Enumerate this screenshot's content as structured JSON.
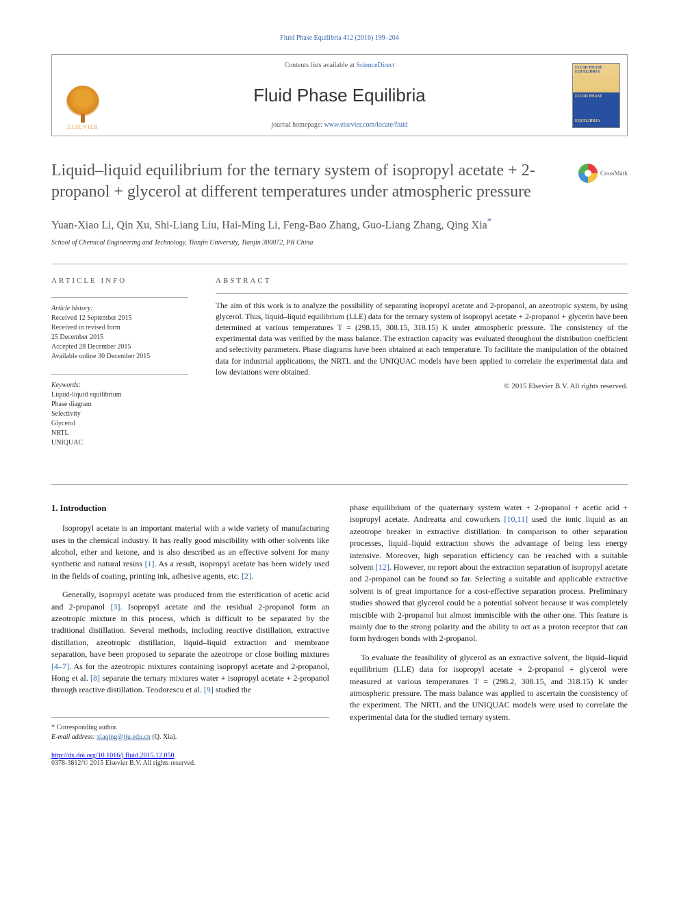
{
  "header": {
    "citation": "Fluid Phase Equilibria 412 (2016) 199–204",
    "contents_text": "Contents lists available at ",
    "contents_link": "ScienceDirect",
    "journal_name": "Fluid Phase Equilibria",
    "homepage_text": "journal homepage: ",
    "homepage_link": "www.elsevier.com/locate/fluid",
    "publisher_name": "ELSEVIER",
    "cover_line1": "FLUID PHASE",
    "cover_line2": "EQUILIBRIA",
    "cover_line3": "FLUID PHASE",
    "cover_line4": "EQUILIBRIA"
  },
  "article": {
    "title": "Liquid–liquid equilibrium for the ternary system of isopropyl acetate + 2-propanol + glycerol at different temperatures under atmospheric pressure",
    "crossmark_label": "CrossMark",
    "authors": "Yuan-Xiao Li, Qin Xu, Shi-Liang Liu, Hai-Ming Li, Feng-Bao Zhang, Guo-Liang Zhang, Qing Xia",
    "corresponding_mark": "*",
    "affiliation": "School of Chemical Engineering and Technology, Tianjin University, Tianjin 300072, PR China"
  },
  "meta": {
    "info_heading": "ARTICLE INFO",
    "history_heading": "Article history:",
    "history_lines": [
      "Received 12 September 2015",
      "Received in revised form",
      "25 December 2015",
      "Accepted 28 December 2015",
      "Available online 30 December 2015"
    ],
    "keywords_heading": "Keywords:",
    "keywords": [
      "Liquid-liquid equilibrium",
      "Phase diagram",
      "Selectivity",
      "Glycerol",
      "NRTL",
      "UNIQUAC"
    ],
    "abstract_heading": "ABSTRACT",
    "abstract": "The aim of this work is to analyze the possibility of separating isopropyl acetate and 2-propanol, an azeotropic system, by using glycerol. Thus, liquid–liquid equilibrium (LLE) data for the ternary system of isopropyl acetate + 2-propanol + glycerin have been determined at various temperatures T = (298.15, 308.15, 318.15) K under atmospheric pressure. The consistency of the experimental data was verified by the mass balance. The extraction capacity was evaluated throughout the distribution coefficient and selectivity parameters. Phase diagrams have been obtained at each temperature. To facilitate the manipulation of the obtained data for industrial applications, the NRTL and the UNIQUAC models have been applied to correlate the experimental data and low deviations were obtained.",
    "copyright": "© 2015 Elsevier B.V. All rights reserved."
  },
  "body": {
    "section_number": "1.",
    "section_title": "Introduction",
    "col1": {
      "p1": "Isopropyl acetate is an important material with a wide variety of manufacturing uses in the chemical industry. It has really good miscibility with other solvents like alcohol, ether and ketone, and is also described as an effective solvent for many synthetic and natural resins [1]. As a result, isopropyl acetate has been widely used in the fields of coating, printing ink, adhesive agents, etc. [2].",
      "p2": "Generally, isopropyl acetate was produced from the esterification of acetic acid and 2-propanol [3]. Isopropyl acetate and the residual 2-propanol form an azeotropic mixture in this process, which is difficult to be separated by the traditional distillation. Several methods, including reactive distillation, extractive distillation, azeotropic distillation, liquid–liquid extraction and membrane separation, have been proposed to separate the azeotrope or close boiling mixtures [4–7]. As for the azeotropic mixtures containing isopropyl acetate and 2-propanol, Hong et al. [8] separate the ternary mixtures water + isopropyl acetate + 2-propanol through reactive distillation. Teodorescu et al. [9] studied the"
    },
    "col2": {
      "p1": "phase equilibrium of the quaternary system water + 2-propanol + acetic acid + isopropyl acetate. Andreatta and coworkers [10,11] used the ionic liquid as an azeotrope breaker in extractive distillation. In comparison to other separation processes, liquid–liquid extraction shows the advantage of being less energy intensive. Moreover, high separation efficiency can be reached with a suitable solvent [12]. However, no report about the extraction separation of isopropyl acetate and 2-propanol can be found so far. Selecting a suitable and applicable extractive solvent is of great importance for a cost-effective separation process. Preliminary studies showed that glycerol could be a potential solvent because it was completely miscible with 2-propanol but almost immiscible with the other one. This feature is mainly due to the strong polarity and the ability to act as a proton receptor that can form hydrogen bonds with 2-propanol.",
      "p2": "To evaluate the feasibility of glycerol as an extractive solvent, the liquid–liquid equilibrium (LLE) data for isopropyl acetate + 2-propanol + glycerol were measured at various temperatures T = (298.2, 308.15, and 318.15) K under atmospheric pressure. The mass balance was applied to ascertain the consistency of the experiment. The NRTL and the UNIQUAC models were used to correlate the experimental data for the studied ternary system."
    }
  },
  "footer": {
    "corresponding_label": "* Corresponding author.",
    "email_label": "E-mail address: ",
    "email": "xiaqing@tju.edu.cn",
    "email_author": " (Q. Xia).",
    "doi": "http://dx.doi.org/10.1016/j.fluid.2015.12.050",
    "issn_copyright": "0378-3812/© 2015 Elsevier B.V. All rights reserved."
  },
  "refs": {
    "r1": "[1]",
    "r2": "[2]",
    "r3": "[3]",
    "r47": "[4–7]",
    "r8": "[8]",
    "r9": "[9]",
    "r1011": "[10,11]",
    "r12": "[12]"
  },
  "colors": {
    "link": "#3366aa",
    "text": "#1a1a1a",
    "heading_gray": "#555555",
    "border": "#aaaaaa",
    "elsevier_orange": "#e8a030"
  }
}
